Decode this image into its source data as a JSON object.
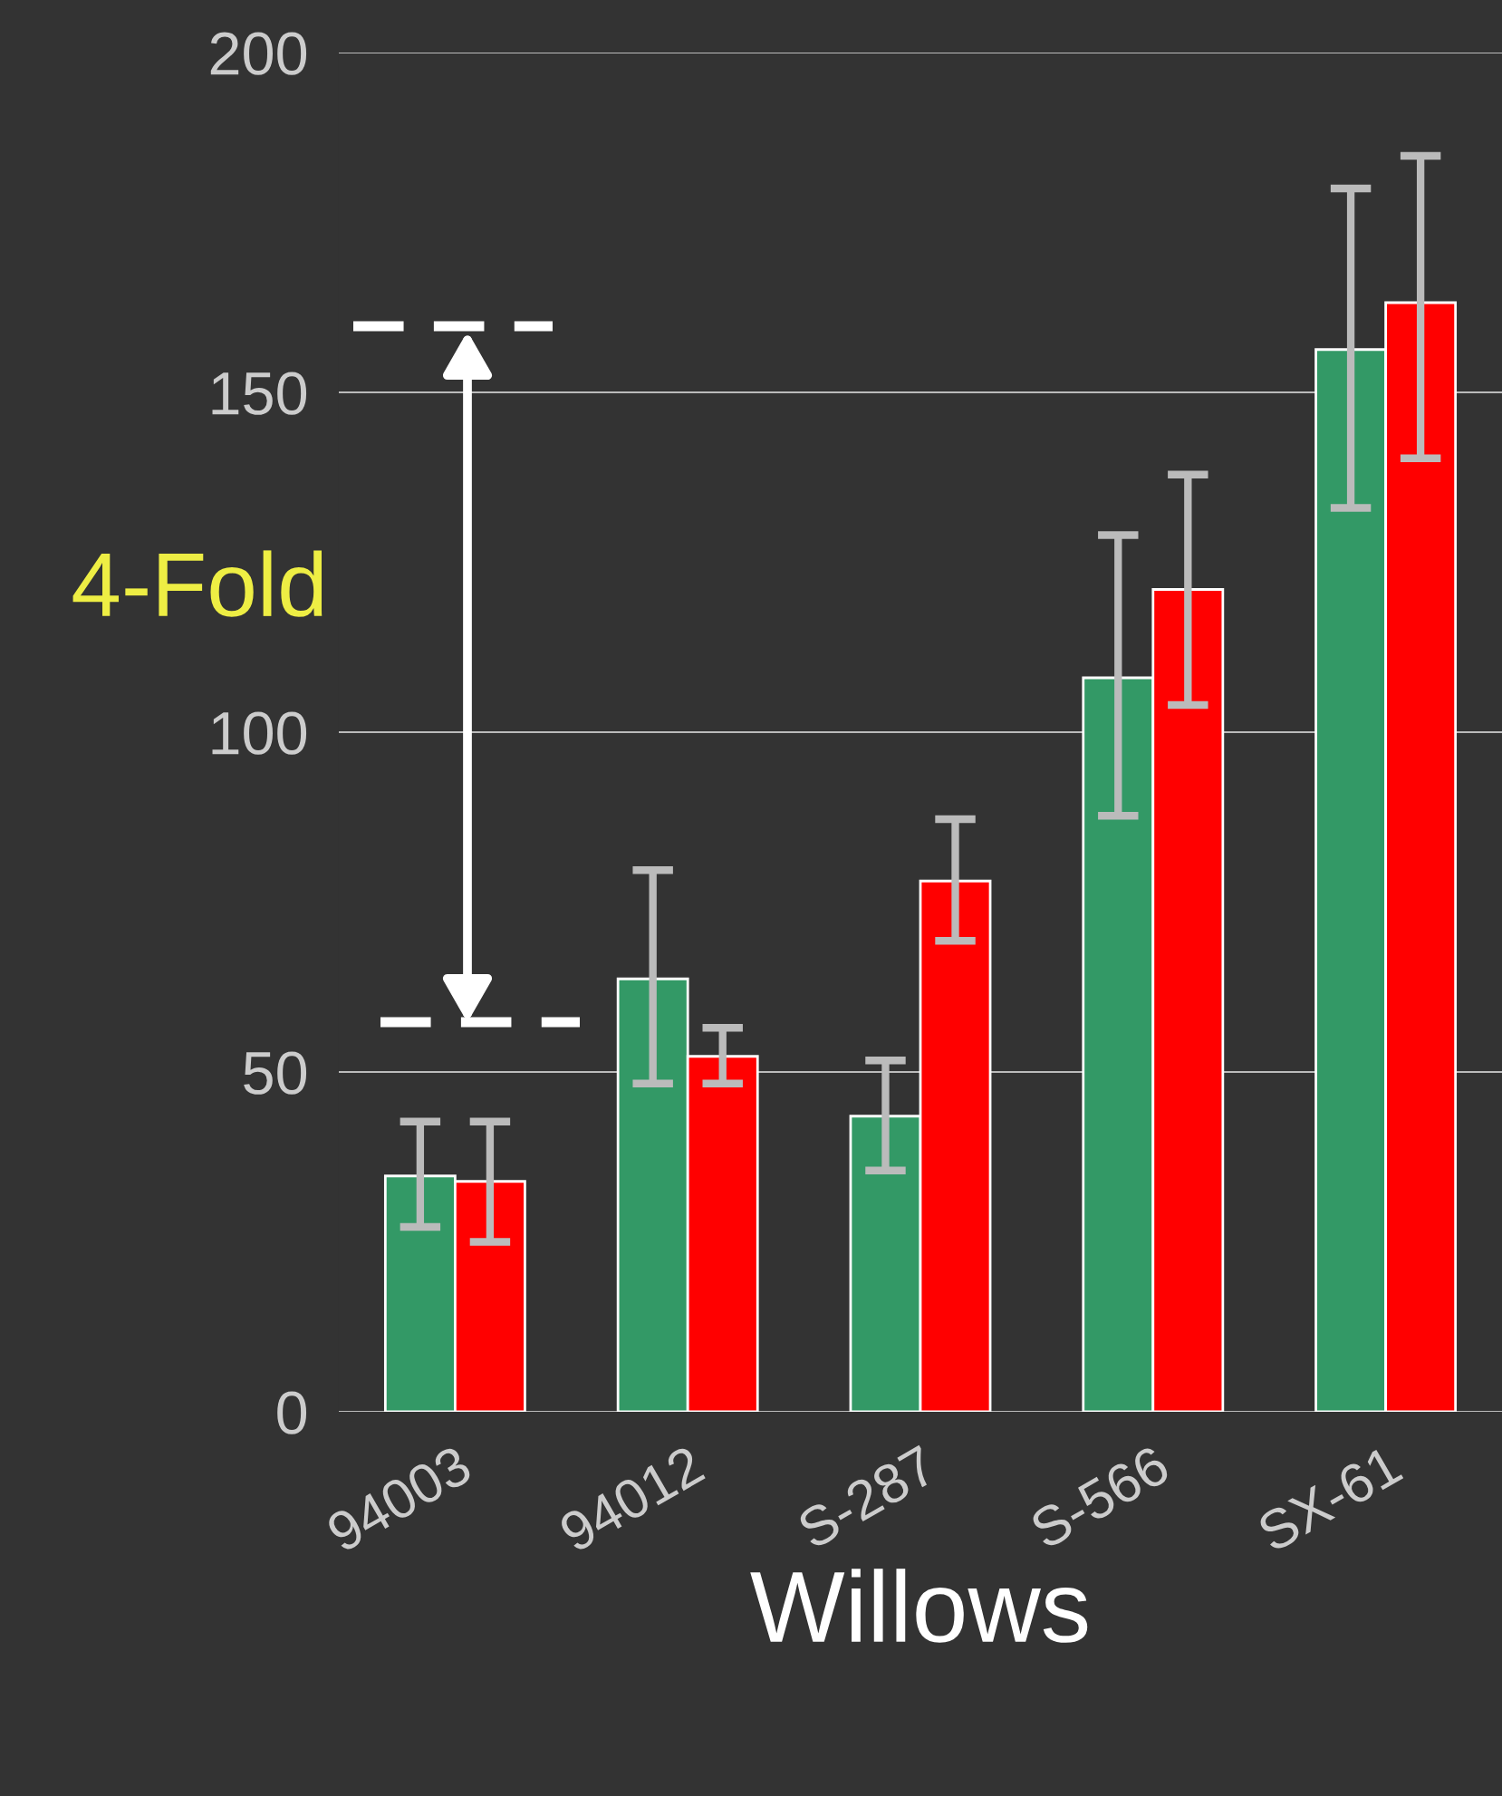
{
  "chart_data": {
    "type": "bar",
    "xlabel": "Willows",
    "categories": [
      "94003",
      "94012",
      "S-287",
      "S-566",
      "SX-61"
    ],
    "series": [
      {
        "color": "#339966",
        "values": [
          34.7,
          63.7,
          43.5,
          108,
          156.3
        ],
        "errors": [
          [
            27.2,
            42.7
          ],
          [
            48.3,
            79.7
          ],
          [
            35.5,
            51.7
          ],
          [
            87.7,
            129
          ],
          [
            133,
            180
          ]
        ]
      },
      {
        "color": "#ff0000",
        "values": [
          33.9,
          52.3,
          78.1,
          121,
          163.2
        ],
        "errors": [
          [
            25,
            42.7
          ],
          [
            48.3,
            56.5
          ],
          [
            69.3,
            87.2
          ],
          [
            104,
            137.9
          ],
          [
            140.3,
            184.8
          ]
        ]
      }
    ],
    "ylim": [
      0,
      200
    ],
    "yticks": [
      0,
      50,
      100,
      150,
      200
    ],
    "grid": "y",
    "annotations": [
      "4-Fold"
    ]
  }
}
